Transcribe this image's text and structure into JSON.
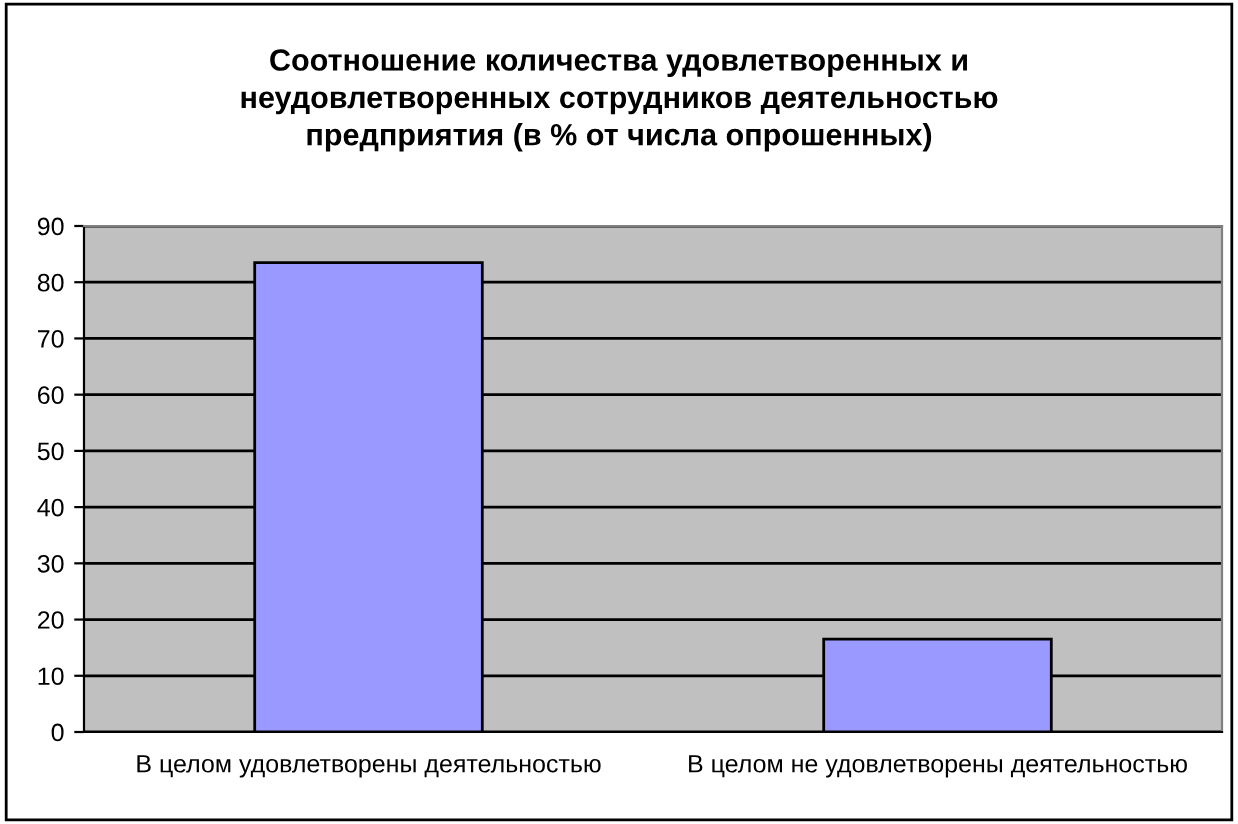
{
  "chart_data": {
    "type": "bar",
    "title": "Соотношение количества удовлетворенных и\nнеудовлетворенных сотрудников деятельностью\nпредприятия (в % от числа опрошенных)",
    "categories": [
      "В целом удовлетворены деятельностью",
      "В целом не удовлетворены деятельностью"
    ],
    "values": [
      83.5,
      16.5
    ],
    "color": "#9999ff",
    "ylim": [
      0,
      90
    ],
    "yticks": [
      0,
      10,
      20,
      30,
      40,
      50,
      60,
      70,
      80,
      90
    ],
    "grid": "y"
  }
}
